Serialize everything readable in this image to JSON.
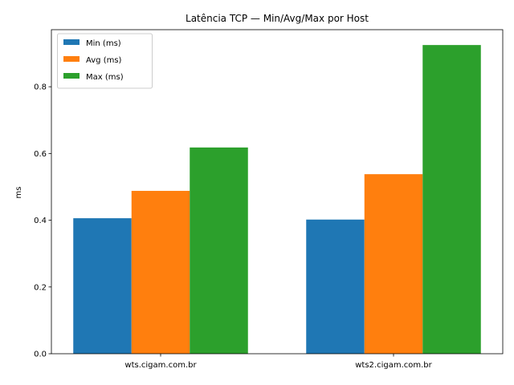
{
  "chart_data": {
    "type": "bar",
    "title": "Latência TCP — Min/Avg/Max por Host",
    "xlabel": "",
    "ylabel": "ms",
    "categories": [
      "wts.cigam.com.br",
      "wts2.cigam.com.br"
    ],
    "series": [
      {
        "name": "Min (ms)",
        "color": "#1f77b4",
        "values": [
          0.406,
          0.402
        ]
      },
      {
        "name": "Avg (ms)",
        "color": "#ff7f0e",
        "values": [
          0.488,
          0.538
        ]
      },
      {
        "name": "Max (ms)",
        "color": "#2ca02c",
        "values": [
          0.618,
          0.925
        ]
      }
    ],
    "ylim": [
      0,
      0.971
    ],
    "yticks": [
      "0.0",
      "0.2",
      "0.4",
      "0.6",
      "0.8"
    ],
    "grid": false,
    "legend_position": "upper left"
  }
}
